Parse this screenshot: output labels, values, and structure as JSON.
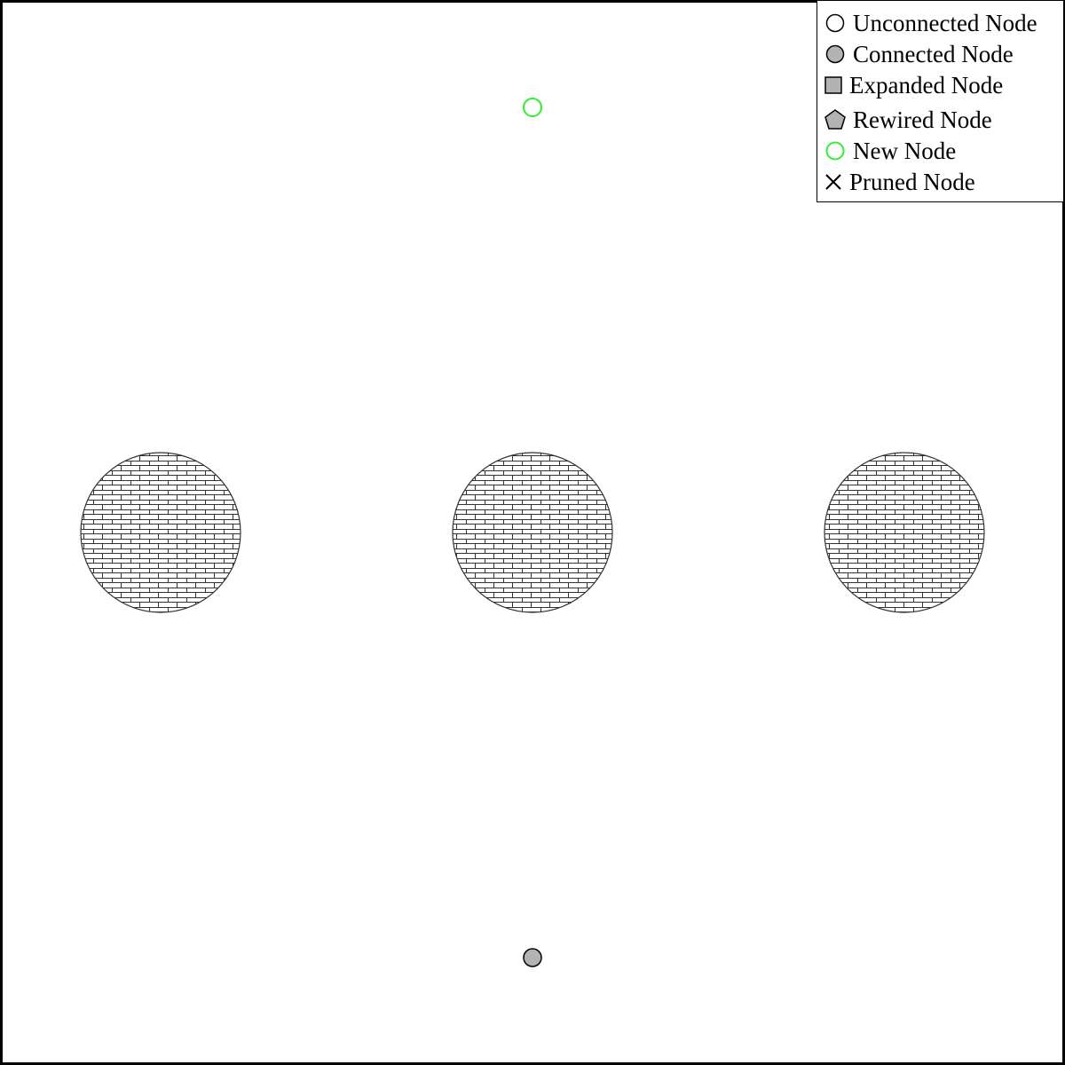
{
  "legend": {
    "items": [
      {
        "key": "unconnected",
        "label": "Unconnected Node",
        "icon": "unconnected-node-icon"
      },
      {
        "key": "connected",
        "label": "Connected Node",
        "icon": "connected-node-icon"
      },
      {
        "key": "expanded",
        "label": "Expanded Node",
        "icon": "expanded-node-icon"
      },
      {
        "key": "rewired",
        "label": "Rewired Node",
        "icon": "rewired-node-icon"
      },
      {
        "key": "new",
        "label": "New Node",
        "icon": "new-node-icon"
      },
      {
        "key": "pruned",
        "label": "Pruned Node",
        "icon": "pruned-node-icon"
      }
    ]
  },
  "colors": {
    "node_fill": "#b3b3b3",
    "new_node_stroke": "#33ee33",
    "stroke": "#000000",
    "obstacle_stroke": "#333333",
    "background": "#ffffff"
  },
  "scene": {
    "obstacles": [
      {
        "name": "left-obstacle",
        "pattern": "brick-hatch"
      },
      {
        "name": "center-obstacle",
        "pattern": "brick-hatch"
      },
      {
        "name": "right-obstacle",
        "pattern": "brick-hatch"
      }
    ],
    "nodes": [
      {
        "name": "start-node",
        "type": "connected"
      },
      {
        "name": "goal-node",
        "type": "new"
      }
    ]
  }
}
